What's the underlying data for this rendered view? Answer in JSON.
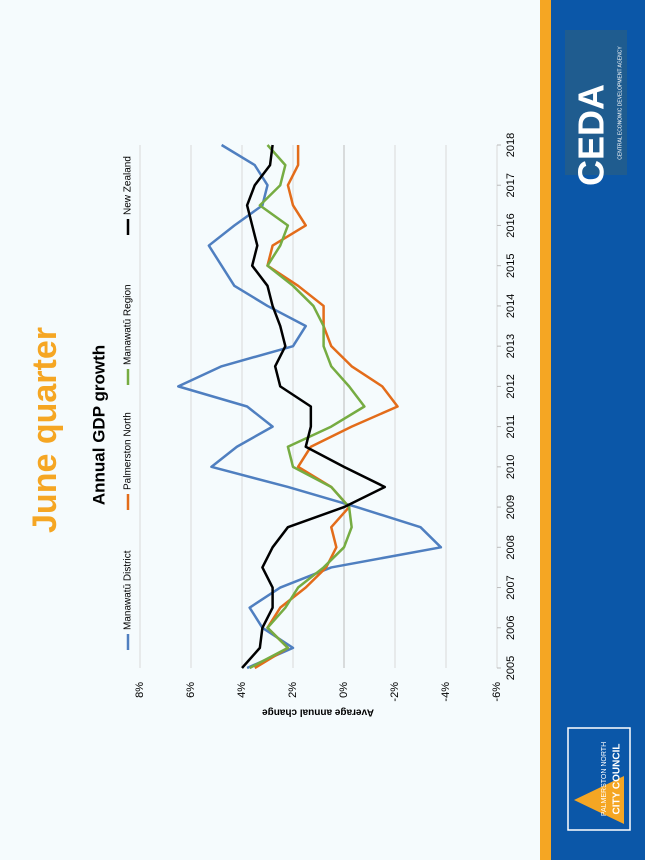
{
  "header": {
    "title": "June quarter"
  },
  "chart_data": {
    "type": "line",
    "title": "Annual GDP growth",
    "y_label": "Average annual change",
    "x": [
      2005,
      2005.5,
      2006,
      2006.5,
      2007,
      2007.5,
      2008,
      2008.5,
      2009,
      2009.5,
      2010,
      2010.5,
      2011,
      2011.5,
      2012,
      2012.5,
      2013,
      2013.5,
      2014,
      2014.5,
      2015,
      2015.5,
      2016,
      2016.5,
      2017,
      2017.5,
      2018
    ],
    "xlim": [
      2005,
      2018
    ],
    "xticks": [
      2005,
      2006,
      2007,
      2008,
      2009,
      2010,
      2011,
      2012,
      2013,
      2014,
      2015,
      2016,
      2017,
      2018
    ],
    "ylim": [
      -6,
      8
    ],
    "yticks": [
      {
        "value": 8,
        "label": "8%"
      },
      {
        "value": 6,
        "label": "6%"
      },
      {
        "value": 4,
        "label": "4%"
      },
      {
        "value": 2,
        "label": "2%"
      },
      {
        "value": 0,
        "label": "0%"
      },
      {
        "value": -2,
        "label": "-2%"
      },
      {
        "value": -4,
        "label": "-4%"
      },
      {
        "value": -6,
        "label": "-6%"
      }
    ],
    "grid": true,
    "series": [
      {
        "name": "Manawatū District",
        "color": "#4f7fc0",
        "values": [
          3.8,
          2.0,
          3.2,
          3.7,
          2.5,
          0.5,
          -3.8,
          -3.0,
          -0.5,
          2.2,
          5.2,
          4.2,
          2.8,
          3.8,
          6.5,
          4.8,
          2.0,
          1.5,
          3.0,
          4.3,
          4.8,
          5.3,
          4.3,
          3.2,
          3.0,
          3.5,
          4.8
        ]
      },
      {
        "name": "Palmerston North",
        "color": "#e36c1a",
        "values": [
          3.5,
          2.2,
          3.0,
          2.5,
          1.5,
          0.7,
          0.3,
          0.5,
          -0.2,
          0.5,
          1.8,
          1.3,
          -0.3,
          -2.1,
          -1.5,
          -0.3,
          0.5,
          0.8,
          0.8,
          1.8,
          3.0,
          2.8,
          1.5,
          2.0,
          2.2,
          1.8,
          1.8
        ]
      },
      {
        "name": "Manawatū Region",
        "color": "#76ac42",
        "values": [
          3.7,
          2.2,
          3.0,
          2.3,
          1.8,
          0.8,
          0.0,
          -0.3,
          -0.2,
          0.5,
          2.0,
          2.2,
          0.5,
          -0.8,
          -0.2,
          0.5,
          0.8,
          0.8,
          1.2,
          2.0,
          3.0,
          2.5,
          2.2,
          3.3,
          2.5,
          2.3,
          3.0
        ]
      },
      {
        "name": "New Zealand",
        "color": "#000000",
        "values": [
          4.0,
          3.3,
          3.2,
          2.8,
          2.8,
          3.2,
          2.8,
          2.2,
          0.0,
          -1.6,
          0.0,
          1.5,
          1.3,
          1.3,
          2.5,
          2.7,
          2.3,
          2.5,
          2.8,
          3.0,
          3.6,
          3.4,
          3.6,
          3.8,
          3.5,
          2.9,
          2.8
        ]
      }
    ]
  },
  "logos": {
    "ceda": "CEDA",
    "ceda_sub": "CENTRAL ECONOMIC DEVELOPMENT AGENCY",
    "council_top": "PALMERSTON NORTH",
    "council_bottom": "CITY COUNCIL"
  }
}
